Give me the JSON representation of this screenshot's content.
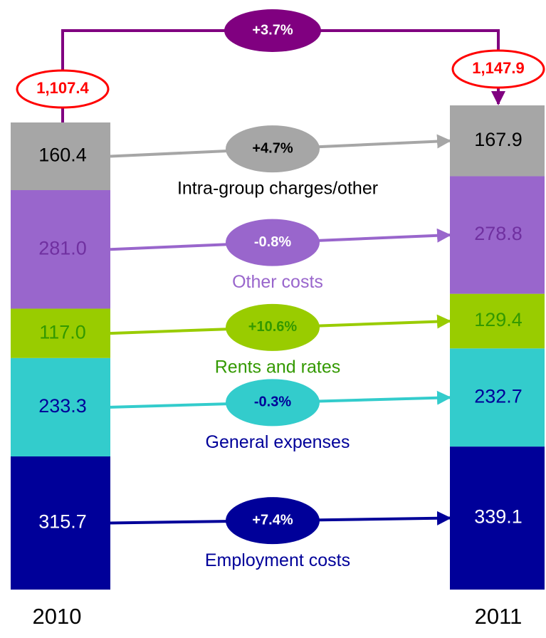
{
  "chart_data": {
    "type": "stacked_bar",
    "categories": [
      "2010",
      "2011"
    ],
    "series": [
      {
        "name": "Employment costs",
        "color": "#000099",
        "values": [
          315.7,
          339.1
        ],
        "change": "+7.4%"
      },
      {
        "name": "General expenses",
        "color": "#33cccc",
        "values": [
          233.3,
          232.7
        ],
        "change": "-0.3%"
      },
      {
        "name": "Rents and rates",
        "color": "#99cc00",
        "values": [
          117,
          129.4
        ],
        "value_labels": [
          "117.0",
          "129.4"
        ],
        "change": "+10.6%"
      },
      {
        "name": "Other costs",
        "color": "#9966cc",
        "values": [
          281,
          278.8
        ],
        "value_labels": [
          "281.0",
          "278.8"
        ],
        "change": "-0.8%"
      },
      {
        "name": "Intra-group charges/other",
        "color": "#a6a6a6",
        "values": [
          160.4,
          167.9
        ],
        "change": "+4.7%"
      }
    ],
    "totals": {
      "values": [
        1107.4,
        1147.9
      ],
      "value_labels": [
        "1,107.4",
        "1,147.9"
      ],
      "change": "+3.7%"
    }
  }
}
